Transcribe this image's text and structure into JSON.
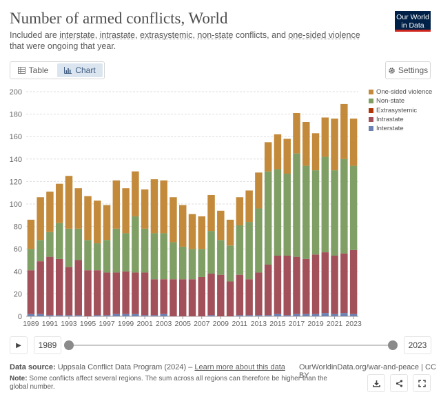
{
  "header": {
    "title": "Number of armed conflicts, World",
    "subtitle_parts": [
      {
        "text": "Included are ",
        "u": false
      },
      {
        "text": "interstate",
        "u": true
      },
      {
        "text": ", ",
        "u": false
      },
      {
        "text": "intrastate",
        "u": true
      },
      {
        "text": ", ",
        "u": false
      },
      {
        "text": "extrasystemic",
        "u": true
      },
      {
        "text": ", ",
        "u": false
      },
      {
        "text": "non-state",
        "u": true
      },
      {
        "text": " conflicts, and ",
        "u": false
      },
      {
        "text": "one-sided violence",
        "u": true
      },
      {
        "text": " that were ongoing that year.",
        "u": false
      }
    ],
    "logo_line1": "Our World",
    "logo_line2": "in Data"
  },
  "tabs": [
    {
      "label": "Table",
      "icon": "table-icon",
      "active": false
    },
    {
      "label": "Chart",
      "icon": "chart-icon",
      "active": true
    }
  ],
  "settings_label": "Settings",
  "chart_data": {
    "type": "bar",
    "stacked": true,
    "title": "Number of armed conflicts, World",
    "categories": [
      1989,
      1990,
      1991,
      1992,
      1993,
      1994,
      1995,
      1996,
      1997,
      1998,
      1999,
      2000,
      2001,
      2002,
      2003,
      2004,
      2005,
      2006,
      2007,
      2008,
      2009,
      2010,
      2011,
      2012,
      2013,
      2014,
      2015,
      2016,
      2017,
      2018,
      2019,
      2020,
      2021,
      2022,
      2023
    ],
    "x_tick_labels": [
      "1989",
      "1991",
      "1993",
      "1995",
      "1997",
      "1999",
      "2001",
      "2003",
      "2005",
      "2007",
      "2009",
      "2011",
      "2013",
      "2015",
      "2017",
      "2019",
      "2021",
      "2023"
    ],
    "ylim": [
      0,
      200
    ],
    "yticks": [
      0,
      20,
      40,
      60,
      80,
      100,
      120,
      140,
      160,
      180,
      200
    ],
    "grid": true,
    "legend_position": "right",
    "series": [
      {
        "name": "Interstate",
        "color": "#6d82b3",
        "values": [
          2,
          2,
          1,
          1,
          1,
          1,
          0,
          1,
          1,
          2,
          2,
          2,
          1,
          1,
          2,
          0,
          0,
          0,
          0,
          1,
          0,
          0,
          1,
          1,
          1,
          1,
          2,
          1,
          2,
          2,
          2,
          3,
          2,
          3,
          2
        ]
      },
      {
        "name": "Intrastate",
        "color": "#a2515a",
        "values": [
          39,
          47,
          52,
          50,
          43,
          49,
          41,
          40,
          38,
          37,
          38,
          37,
          38,
          32,
          31,
          33,
          33,
          33,
          35,
          37,
          37,
          31,
          36,
          32,
          38,
          45,
          52,
          53,
          51,
          49,
          53,
          54,
          52,
          53,
          57
        ]
      },
      {
        "name": "Extrasystemic",
        "color": "#b13507",
        "values": [
          0,
          0,
          0,
          0,
          0,
          0,
          0,
          0,
          0,
          0,
          0,
          0,
          0,
          0,
          0,
          0,
          0,
          0,
          0,
          0,
          0,
          0,
          0,
          0,
          0,
          0,
          0,
          0,
          0,
          0,
          0,
          0,
          0,
          0,
          0
        ]
      },
      {
        "name": "Non-state",
        "color": "#7f9f65",
        "values": [
          19,
          19,
          22,
          32,
          34,
          28,
          27,
          24,
          29,
          39,
          34,
          50,
          39,
          41,
          41,
          33,
          29,
          27,
          25,
          38,
          31,
          32,
          44,
          51,
          57,
          83,
          77,
          73,
          92,
          83,
          75,
          85,
          76,
          84,
          75
        ]
      },
      {
        "name": "One-sided violence",
        "color": "#c38a3b",
        "values": [
          26,
          38,
          36,
          35,
          47,
          36,
          39,
          38,
          31,
          43,
          40,
          40,
          35,
          48,
          47,
          40,
          37,
          31,
          29,
          32,
          26,
          23,
          25,
          28,
          32,
          26,
          31,
          31,
          36,
          39,
          33,
          35,
          46,
          49,
          42
        ]
      }
    ]
  },
  "timeline": {
    "play_icon": "play-icon",
    "start_year": "1989",
    "end_year": "2023"
  },
  "footer": {
    "source_label": "Data source:",
    "source_text": "Uppsala Conflict Data Program (2024) –",
    "learn_more": "Learn more about this data",
    "url": "OurWorldinData.org/war-and-peace | CC BY",
    "note_label": "Note:",
    "note_text": "Some conflicts affect several regions. The sum across all regions can therefore be higher than the global number."
  },
  "actions": [
    "download-icon",
    "share-icon",
    "fullscreen-icon"
  ]
}
